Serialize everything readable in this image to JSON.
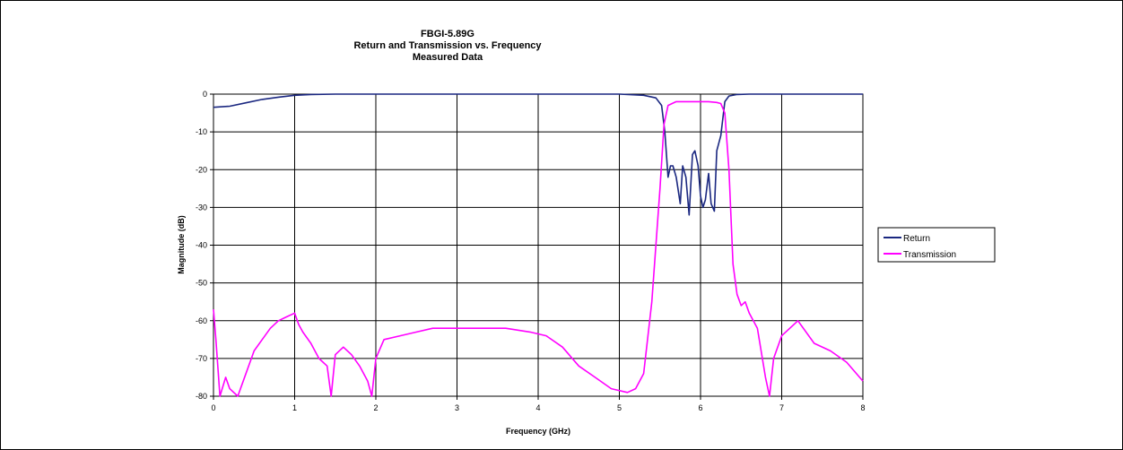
{
  "chart_data": {
    "type": "line",
    "title": "FBGI-5.89G",
    "subtitle": "Return and Transmission vs. Frequency",
    "subtitle2": "Measured Data",
    "xlabel": "Frequency (GHz)",
    "ylabel": "Magnitude (dB)",
    "xlim": [
      0,
      8
    ],
    "ylim": [
      -80,
      0
    ],
    "xticks": [
      "0",
      "1",
      "2",
      "3",
      "4",
      "5",
      "6",
      "7",
      "8"
    ],
    "yticks": [
      "0",
      "-10",
      "-20",
      "-30",
      "-40",
      "-50",
      "-60",
      "-70",
      "-80"
    ],
    "grid": true,
    "legend_position": "right",
    "series": [
      {
        "name": "Return",
        "color": "#1a2780",
        "x": [
          0,
          0.2,
          0.4,
          0.6,
          0.8,
          1.0,
          1.2,
          1.5,
          2,
          3,
          4,
          5,
          5.3,
          5.45,
          5.52,
          5.56,
          5.6,
          5.63,
          5.66,
          5.7,
          5.75,
          5.78,
          5.82,
          5.86,
          5.9,
          5.93,
          5.97,
          6.0,
          6.03,
          6.06,
          6.1,
          6.13,
          6.17,
          6.2,
          6.25,
          6.3,
          6.35,
          6.45,
          6.6,
          7,
          8
        ],
        "y": [
          -3.5,
          -3.2,
          -2.3,
          -1.4,
          -0.8,
          -0.3,
          -0.1,
          0,
          0,
          0,
          0,
          0,
          -0.3,
          -1,
          -3,
          -10,
          -22,
          -19,
          -19,
          -22,
          -29,
          -19,
          -22,
          -32,
          -16,
          -15,
          -19,
          -27,
          -30,
          -28,
          -21,
          -29,
          -31,
          -15,
          -11,
          -2,
          -0.5,
          -0.1,
          0,
          0,
          0
        ]
      },
      {
        "name": "Transmission",
        "color": "#ff00ff",
        "x": [
          0,
          0.03,
          0.08,
          0.15,
          0.2,
          0.3,
          0.4,
          0.5,
          0.6,
          0.7,
          0.8,
          0.9,
          1.0,
          1.05,
          1.1,
          1.2,
          1.3,
          1.4,
          1.45,
          1.5,
          1.6,
          1.7,
          1.8,
          1.9,
          1.95,
          2.0,
          2.1,
          2.3,
          2.5,
          2.7,
          3.0,
          3.3,
          3.6,
          3.9,
          4.1,
          4.3,
          4.5,
          4.7,
          4.9,
          5.1,
          5.2,
          5.3,
          5.4,
          5.5,
          5.55,
          5.6,
          5.65,
          5.7,
          5.8,
          5.9,
          6.0,
          6.1,
          6.2,
          6.25,
          6.3,
          6.35,
          6.4,
          6.45,
          6.5,
          6.55,
          6.6,
          6.7,
          6.8,
          6.85,
          6.9,
          7.0,
          7.2,
          7.4,
          7.6,
          7.8,
          8.0
        ],
        "y": [
          -57,
          -65,
          -80,
          -75,
          -78,
          -80,
          -74,
          -68,
          -65,
          -62,
          -60,
          -59,
          -58,
          -61,
          -63,
          -66,
          -70,
          -72,
          -80,
          -69,
          -67,
          -69,
          -72,
          -76,
          -80,
          -70,
          -65,
          -64,
          -63,
          -62,
          -62,
          -62,
          -62,
          -63,
          -64,
          -67,
          -72,
          -75,
          -78,
          -79,
          -78,
          -74,
          -55,
          -25,
          -8,
          -3,
          -2.5,
          -2,
          -2,
          -2,
          -2,
          -2,
          -2.2,
          -2.5,
          -5,
          -20,
          -45,
          -53,
          -56,
          -55,
          -58,
          -62,
          -75,
          -80,
          -70,
          -64,
          -60,
          -66,
          -68,
          -71,
          -76
        ]
      }
    ]
  }
}
